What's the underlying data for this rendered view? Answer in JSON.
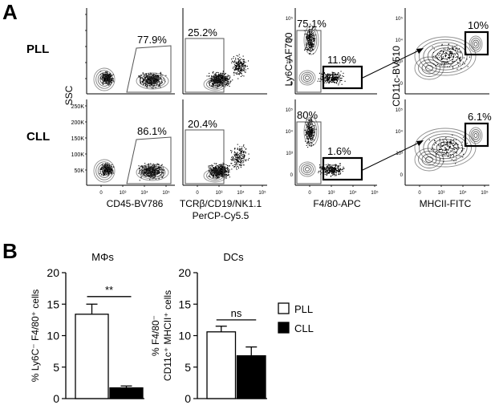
{
  "panel_a": {
    "label": "A",
    "row_labels": [
      "PLL",
      "CLL"
    ],
    "ssc_label": "SSC",
    "ly6c_label": "Ly6C-AF700",
    "cd11c_label": "CD11c-BV510",
    "x_labels": {
      "cd45": "CD45-BV786",
      "tcr_line1": "TCRβ/CD19/NK1.1",
      "tcr_line2": "PerCP-Cy5.5",
      "f480": "F4/80-APC",
      "mhcii": "MHCII-FITC"
    },
    "ssc_ticks": [
      "250K",
      "200K",
      "150K",
      "100K",
      "50K"
    ],
    "x_ticks_123": [
      "0",
      "10³",
      "10⁴",
      "10⁵"
    ],
    "x_ticks_45": [
      "0",
      "10³",
      "10⁴",
      "10⁵"
    ],
    "y_ticks_ly6c": [
      "10⁵",
      "10⁴",
      "10³",
      "0"
    ],
    "y_ticks_cd11c": [
      "10⁵",
      "10⁴",
      "10³",
      "0"
    ],
    "gates": {
      "pll": [
        "77.9%",
        "25.2%",
        "75.1%",
        "11.9%",
        "10%"
      ],
      "cll": [
        "86.1%",
        "20.4%",
        "80%",
        "1.6%",
        "6.1%"
      ]
    }
  },
  "panel_b": {
    "label": "B",
    "legend": [
      "PLL",
      "CLL"
    ],
    "colors": {
      "PLL": "#ffffff",
      "CLL": "#000000"
    }
  },
  "chart_data": [
    {
      "type": "bar",
      "title": "MΦs",
      "ylabel": "% Ly6C⁻ F4/80⁺ cells",
      "categories": [
        "PLL",
        "CLL"
      ],
      "values": [
        13.4,
        1.7
      ],
      "errors": [
        1.6,
        0.3
      ],
      "ylim": [
        0,
        20
      ],
      "yticks": [
        "0",
        "5",
        "10",
        "15",
        "20"
      ],
      "significance": "**"
    },
    {
      "type": "bar",
      "title": "DCs",
      "ylabel_line1": "% F4/80⁻",
      "ylabel_line2": "CD11c⁺ MHCII⁺ cells",
      "categories": [
        "PLL",
        "CLL"
      ],
      "values": [
        10.6,
        6.8
      ],
      "errors": [
        0.9,
        1.4
      ],
      "ylim": [
        0,
        20
      ],
      "yticks": [
        "0",
        "5",
        "10",
        "15",
        "20"
      ],
      "significance": "ns"
    }
  ]
}
